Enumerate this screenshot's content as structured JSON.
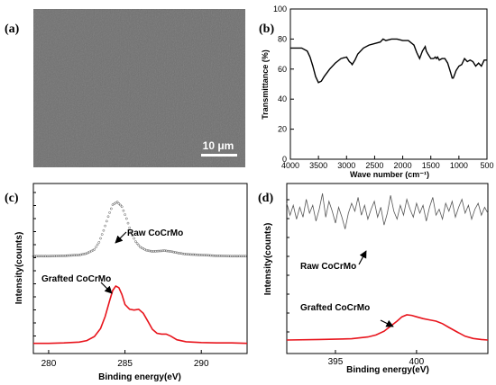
{
  "panels": {
    "a": {
      "label": "(a)",
      "scale_bar": "10 μm"
    },
    "b": {
      "label": "(b)"
    },
    "c": {
      "label": "(c)"
    },
    "d": {
      "label": "(d)"
    }
  },
  "colors": {
    "raw": "#555555",
    "grafted": "#e8141c",
    "axis": "#000000"
  },
  "chart_data": [
    {
      "panel": "b",
      "type": "line",
      "xlabel": "Wave number (cm⁻¹)",
      "ylabel": "Transmittance (%)",
      "xlim": [
        4000,
        500
      ],
      "ylim": [
        0,
        100
      ],
      "xticks": [
        4000,
        3500,
        3000,
        2500,
        2000,
        1500,
        1000,
        500
      ],
      "yticks": [
        0,
        20,
        40,
        60,
        80,
        100
      ],
      "series": [
        {
          "x": [
            4000,
            3800,
            3700,
            3650,
            3600,
            3550,
            3500,
            3450,
            3400,
            3300,
            3200,
            3100,
            3000,
            2950,
            2920,
            2900,
            2850,
            2800,
            2700,
            2600,
            2500,
            2400,
            2350,
            2300,
            2200,
            2100,
            2000,
            1900,
            1800,
            1750,
            1700,
            1650,
            1600,
            1580,
            1550,
            1500,
            1450,
            1420,
            1400,
            1380,
            1350,
            1300,
            1250,
            1200,
            1150,
            1120,
            1100,
            1080,
            1050,
            1000,
            950,
            900,
            850,
            800,
            750,
            700,
            650,
            600,
            550,
            500
          ],
          "values": [
            74,
            74,
            72,
            68,
            62,
            55,
            51,
            52,
            55,
            60,
            64,
            67,
            68,
            65,
            64,
            63,
            66,
            70,
            74,
            76,
            77,
            78,
            80,
            79,
            80,
            80,
            79,
            79,
            76,
            71,
            67,
            72,
            75,
            72,
            70,
            67,
            67,
            68,
            67,
            68,
            66,
            67,
            67,
            64,
            58,
            54,
            54,
            56,
            59,
            62,
            63,
            67,
            65,
            66,
            65,
            62,
            64,
            62,
            66,
            66
          ]
        }
      ]
    },
    {
      "panel": "c",
      "type": "line",
      "xlabel": "Binding energy(eV)",
      "ylabel": "Intensity(counts)",
      "xlim": [
        279,
        293
      ],
      "xticks": [
        280,
        285,
        290
      ],
      "series": [
        {
          "name": "Raw CoCrMo",
          "style": "markers",
          "x": [
            279,
            280,
            281,
            282,
            282.5,
            283,
            283.3,
            283.6,
            283.9,
            284.2,
            284.5,
            284.8,
            285.1,
            285.4,
            285.7,
            286,
            286.4,
            286.8,
            287.2,
            287.6,
            288,
            288.5,
            289,
            290,
            291,
            292,
            293
          ],
          "values": [
            0.5,
            0.5,
            0.6,
            0.8,
            1.2,
            2.2,
            4.0,
            7.0,
            10.5,
            13.5,
            14.2,
            13.0,
            10.0,
            6.5,
            4.2,
            2.8,
            2.0,
            1.7,
            1.8,
            1.9,
            1.7,
            1.3,
            1.0,
            0.8,
            0.6,
            0.5,
            0.5
          ]
        },
        {
          "name": "Grafted CoCrMo",
          "style": "line",
          "x": [
            279,
            280,
            281,
            282,
            282.5,
            283,
            283.4,
            283.7,
            284,
            284.2,
            284.4,
            284.6,
            284.8,
            285,
            285.3,
            285.6,
            285.9,
            286.2,
            286.5,
            286.8,
            287.1,
            287.4,
            287.7,
            288,
            288.4,
            289,
            290,
            291,
            292,
            293
          ],
          "values": [
            0.3,
            0.3,
            0.4,
            0.6,
            1.0,
            2.0,
            4.0,
            7.0,
            11.0,
            13.5,
            14.6,
            14.2,
            12.5,
            10.0,
            8.8,
            8.6,
            8.8,
            7.8,
            5.8,
            3.8,
            2.8,
            2.6,
            2.6,
            2.1,
            1.2,
            0.7,
            0.5,
            0.4,
            0.4,
            0.3
          ]
        }
      ]
    },
    {
      "panel": "d",
      "type": "line",
      "xlabel": "Binding energy(eV)",
      "ylabel": "Intensity(counts)",
      "xlim": [
        392,
        404.4
      ],
      "xticks": [
        395,
        400
      ],
      "series": [
        {
          "name": "Raw CoCrMo",
          "style": "noisy-line",
          "x": [
            392.0,
            392.2,
            392.4,
            392.6,
            392.8,
            393.0,
            393.2,
            393.4,
            393.6,
            393.8,
            394.0,
            394.2,
            394.4,
            394.6,
            394.8,
            395.0,
            395.2,
            395.4,
            395.6,
            395.8,
            396.0,
            396.2,
            396.4,
            396.6,
            396.8,
            397.0,
            397.2,
            397.4,
            397.6,
            397.8,
            398.0,
            398.2,
            398.4,
            398.6,
            398.8,
            399.0,
            399.2,
            399.4,
            399.6,
            399.8,
            400.0,
            400.2,
            400.4,
            400.6,
            400.8,
            401.0,
            401.2,
            401.4,
            401.6,
            401.8,
            402.0,
            402.2,
            402.4,
            402.6,
            402.8,
            403.0,
            403.2,
            403.4,
            403.6,
            403.8,
            404.0,
            404.2,
            404.4
          ],
          "values": [
            1.0,
            0.4,
            0.9,
            0.2,
            0.8,
            0.3,
            1.2,
            0.5,
            0.9,
            0.1,
            0.7,
            1.5,
            0.3,
            1.1,
            0.6,
            0.0,
            0.8,
            0.3,
            -0.3,
            0.5,
            1.0,
            0.6,
            1.3,
            0.4,
            0.9,
            0.2,
            0.7,
            1.1,
            0.3,
            0.8,
            -0.1,
            0.5,
            1.4,
            0.6,
            0.2,
            0.9,
            0.4,
            1.2,
            0.7,
            0.3,
            1.0,
            0.5,
            0.9,
            0.1,
            0.8,
            1.3,
            0.4,
            0.7,
            0.2,
            1.0,
            0.6,
            1.1,
            0.3,
            0.8,
            1.2,
            0.5,
            0.9,
            0.2,
            0.7,
            1.0,
            0.4,
            0.8,
            0.5
          ]
        },
        {
          "name": "Grafted CoCrMo",
          "style": "line",
          "x": [
            392,
            394,
            396,
            397,
            397.5,
            398,
            398.4,
            398.8,
            399.1,
            399.4,
            399.7,
            400,
            400.4,
            400.8,
            401.2,
            401.6,
            402,
            402.5,
            403,
            403.5,
            404,
            404.4
          ],
          "values": [
            0.0,
            0.02,
            0.05,
            0.12,
            0.2,
            0.35,
            0.55,
            0.75,
            0.92,
            1.0,
            0.98,
            0.92,
            0.85,
            0.8,
            0.75,
            0.65,
            0.5,
            0.32,
            0.15,
            0.06,
            0.02,
            0.0
          ]
        }
      ]
    }
  ],
  "annotations": {
    "c_raw": "Raw CoCrMo",
    "c_grafted": "Grafted CoCrMo",
    "d_raw": "Raw CoCrMo",
    "d_grafted": "Grafted CoCrMo"
  }
}
